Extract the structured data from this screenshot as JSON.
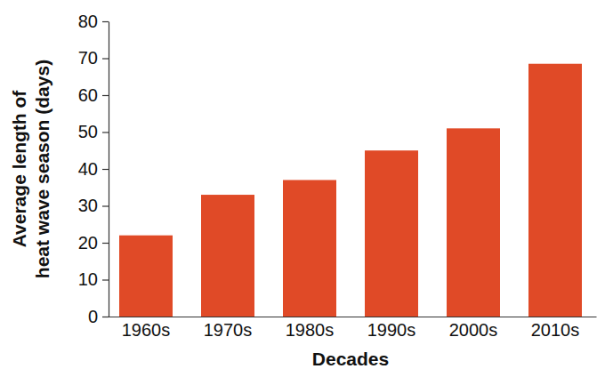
{
  "chart_data": {
    "type": "bar",
    "xlabel": "Decades",
    "ylabel": "Average length of heat wave season (days)",
    "categories": [
      "1960s",
      "1970s",
      "1980s",
      "1990s",
      "2000s",
      "2010s"
    ],
    "values": [
      22,
      33,
      37,
      45,
      51,
      68.5
    ],
    "color": "#e04a27",
    "ylim": [
      0,
      80
    ],
    "yticks": [
      0,
      10,
      20,
      30,
      40,
      50,
      60,
      70,
      80
    ],
    "grid": false
  }
}
